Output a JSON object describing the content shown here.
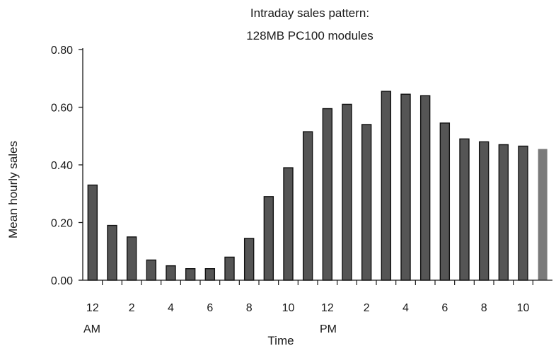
{
  "chart_data": {
    "type": "bar",
    "title_lines": [
      "Intraday sales pattern:",
      "128MB PC100 modules"
    ],
    "xlabel": "Time",
    "ylabel": "Mean hourly sales",
    "ylim": [
      0,
      0.8
    ],
    "yticks": [
      "0.00",
      "0.20",
      "0.40",
      "0.60",
      "0.80"
    ],
    "xtick_labels": [
      "12",
      "2",
      "4",
      "6",
      "8",
      "10",
      "12",
      "2",
      "4",
      "6",
      "8",
      "10"
    ],
    "period_labels": [
      "AM",
      "PM"
    ],
    "grid": false,
    "bar_color": "#555555",
    "last_bar_color": "#7a7a7a",
    "values": [
      0.33,
      0.19,
      0.15,
      0.07,
      0.05,
      0.04,
      0.04,
      0.08,
      0.145,
      0.29,
      0.39,
      0.515,
      0.595,
      0.61,
      0.54,
      0.655,
      0.645,
      0.64,
      0.545,
      0.49,
      0.48,
      0.47,
      0.465,
      0.455
    ]
  }
}
